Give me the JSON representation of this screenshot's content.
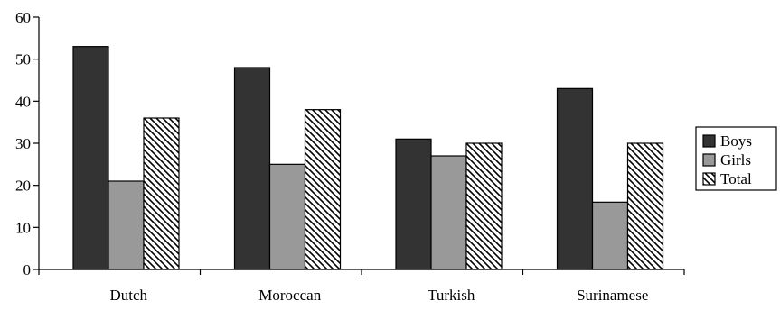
{
  "chart_data": {
    "type": "bar",
    "title": "",
    "xlabel": "",
    "ylabel": "",
    "categories": [
      "Dutch",
      "Moroccan",
      "Turkish",
      "Surinamese"
    ],
    "series": [
      {
        "name": "Boys",
        "values": [
          53,
          48,
          31,
          43
        ],
        "fill": "#333333",
        "pattern": "solid"
      },
      {
        "name": "Girls",
        "values": [
          21,
          25,
          27,
          16
        ],
        "fill": "#999999",
        "pattern": "solid"
      },
      {
        "name": "Total",
        "values": [
          36,
          38,
          30,
          30
        ],
        "fill": "#ffffff",
        "pattern": "diagonal-hatch"
      }
    ],
    "ylim": [
      0,
      60
    ],
    "yticks": [
      0,
      10,
      20,
      30,
      40,
      50,
      60
    ],
    "grid": false,
    "legend": "right"
  }
}
